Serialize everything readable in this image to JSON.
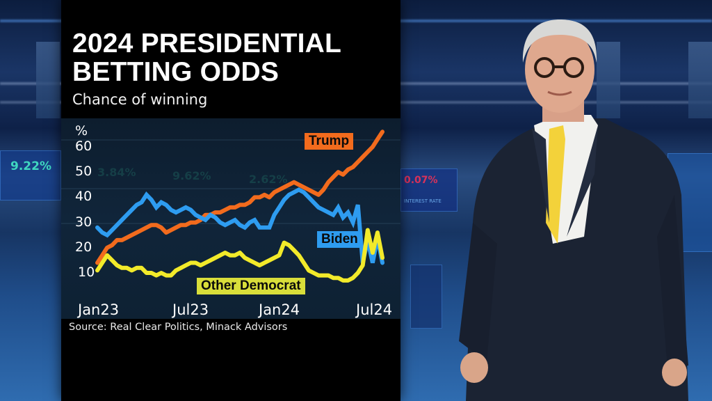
{
  "graphic": {
    "title_line1": "2024 PRESIDENTIAL",
    "title_line2": "BETTING ODDS",
    "subtitle": "Chance of winning",
    "source": "Source: Real Clear Politics, Minack Advisors"
  },
  "background_screens": {
    "left_value": "9.22%",
    "ghost_values": [
      "3.84%",
      "9.62%",
      "2.62%",
      "0.07%"
    ],
    "ticker_label": "INTEREST RATE"
  },
  "colors": {
    "trump": "#f26b1d",
    "biden": "#2e9cf0",
    "other_democrat": "#f2ea2a",
    "trump_tag": "#f26b1d",
    "biden_tag": "#2e9cf0",
    "other_democrat_tag": "#d9de3a"
  },
  "chart_data": {
    "type": "line",
    "title": "2024 PRESIDENTIAL BETTING ODDS",
    "subtitle": "Chance of winning",
    "xlabel": "",
    "ylabel": "%",
    "ylim": [
      5,
      65
    ],
    "yticks": [
      10,
      20,
      30,
      40,
      50,
      60
    ],
    "xticks": [
      "Jan23",
      "Jul23",
      "Jan24",
      "Jul24"
    ],
    "grid": false,
    "legend": "inline labels",
    "x": [
      0,
      1,
      2,
      3,
      4,
      5,
      6,
      7,
      8,
      9,
      10,
      11,
      12,
      13,
      14,
      15,
      16,
      17,
      18,
      19,
      20,
      21,
      22,
      23,
      24,
      25,
      26,
      27,
      28,
      29,
      30,
      31,
      32,
      33,
      34,
      35,
      36,
      37,
      38,
      39,
      40,
      41,
      42,
      43,
      44,
      45,
      46,
      47,
      48,
      49,
      50,
      51,
      52,
      53,
      54,
      55,
      56,
      57,
      58
    ],
    "x_note": "index of roughly bi-weekly samples from Jan 2023 to mid Jul 2024",
    "series": [
      {
        "name": "Trump",
        "values": [
          14,
          17,
          20,
          21,
          23,
          23,
          24,
          25,
          26,
          27,
          28,
          29,
          29,
          28,
          26,
          27,
          28,
          29,
          29,
          30,
          30,
          31,
          33,
          33,
          34,
          34,
          35,
          36,
          36,
          37,
          37,
          38,
          40,
          40,
          41,
          40,
          42,
          43,
          44,
          45,
          46,
          45,
          44,
          43,
          42,
          41,
          43,
          46,
          48,
          50,
          49,
          51,
          52,
          54,
          56,
          58,
          60,
          63,
          66
        ],
        "label_position": "upper right"
      },
      {
        "name": "Biden",
        "values": [
          28,
          26,
          25,
          27,
          29,
          31,
          33,
          35,
          37,
          38,
          41,
          39,
          36,
          38,
          37,
          35,
          34,
          35,
          36,
          35,
          33,
          32,
          31,
          33,
          32,
          30,
          29,
          30,
          31,
          29,
          28,
          30,
          31,
          28,
          28,
          28,
          33,
          36,
          39,
          41,
          42,
          43,
          42,
          40,
          38,
          36,
          35,
          34,
          33,
          36,
          32,
          34,
          30,
          37,
          14,
          23,
          14,
          24,
          14
        ],
        "label_position": "right, above Other Democrat"
      },
      {
        "name": "Other Democrat",
        "values": [
          11,
          14,
          17,
          15,
          13,
          12,
          12,
          11,
          12,
          12,
          10,
          10,
          9,
          10,
          9,
          9,
          11,
          12,
          13,
          14,
          14,
          13,
          14,
          15,
          16,
          17,
          18,
          17,
          17,
          18,
          16,
          15,
          14,
          13,
          14,
          15,
          16,
          17,
          22,
          21,
          19,
          17,
          14,
          11,
          10,
          9,
          9,
          9,
          8,
          8,
          7,
          7,
          8,
          10,
          13,
          27,
          18,
          26,
          16
        ],
        "label_position": "lower middle"
      }
    ]
  }
}
